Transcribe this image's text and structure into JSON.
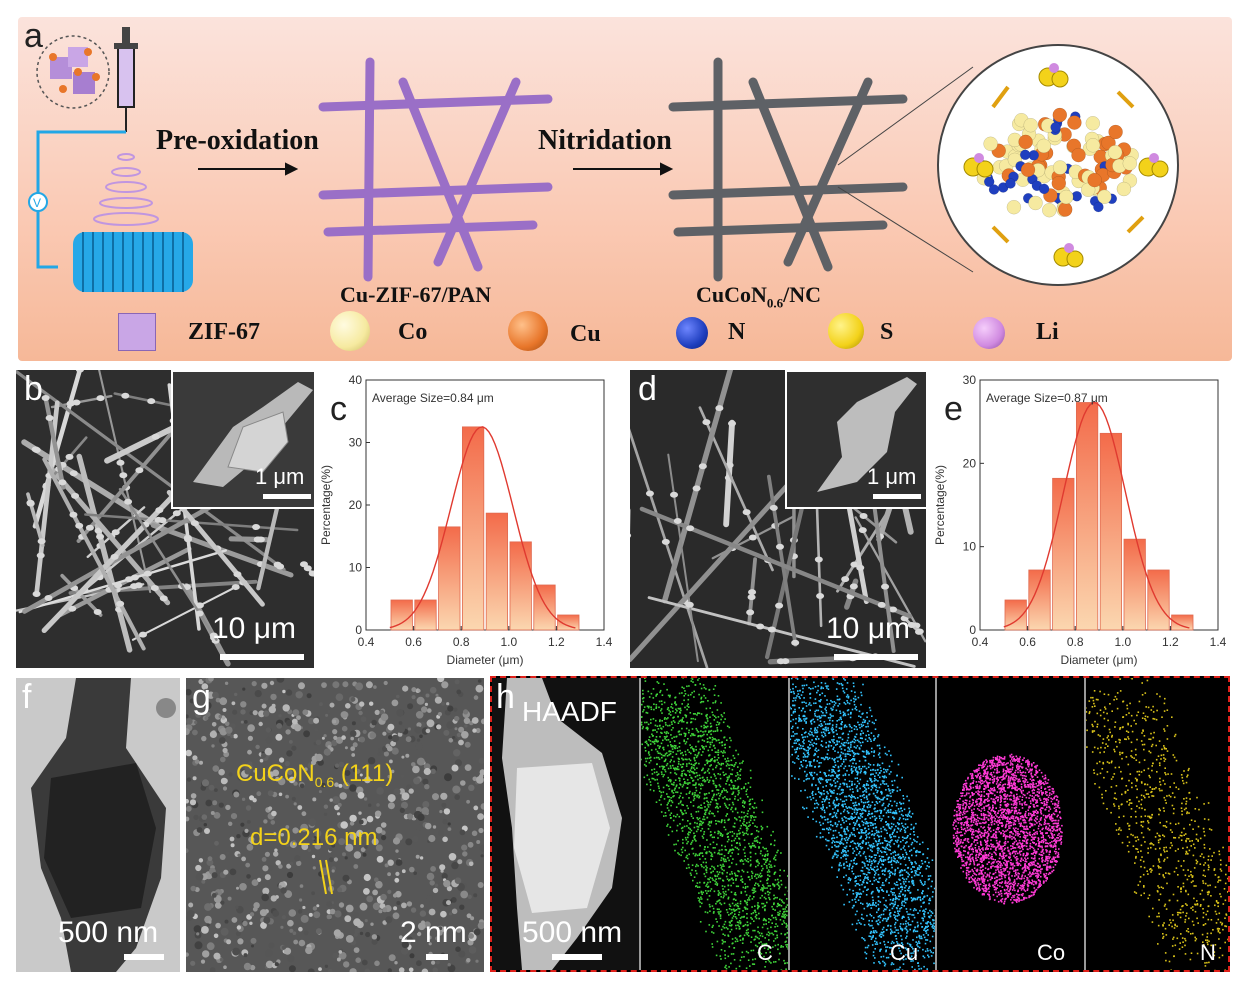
{
  "panel_a": {
    "letter": "a",
    "step1": "Pre-oxidation",
    "step2": "Nitridation",
    "product1": "Cu-ZIF-67/PAN",
    "product2_prefix": "CuCoN",
    "product2_sub": "0.6",
    "product2_suffix": "/NC",
    "legend": [
      {
        "label": "ZIF-67",
        "color": "#c9a6e6"
      },
      {
        "label": "Co",
        "color": "#f6eaa0"
      },
      {
        "label": "Cu",
        "color": "#e8762a"
      },
      {
        "label": "N",
        "color": "#1f3fbf"
      },
      {
        "label": "S",
        "color": "#f3d21a"
      },
      {
        "label": "Li",
        "color": "#d08ae0"
      }
    ]
  },
  "panel_b": {
    "letter": "b",
    "scale_main": "10 μm",
    "scale_inset": "1 μm"
  },
  "panel_d": {
    "letter": "d",
    "scale_main": "10 μm",
    "scale_inset": "1 μm"
  },
  "panel_f": {
    "letter": "f",
    "scale": "500 nm"
  },
  "panel_g": {
    "letter": "g",
    "label_prefix": "CuCoN",
    "label_sub": "0.6",
    "label_suffix": " (111)",
    "dspacing": "d=0.216 nm",
    "scale": "2 nm"
  },
  "panel_h": {
    "letter": "h",
    "haadf": "HAADF",
    "scale": "500 nm",
    "maps": [
      {
        "label": "C",
        "color": "#3fd43a"
      },
      {
        "label": "Cu",
        "color": "#33c4ff"
      },
      {
        "label": "Co",
        "color": "#ff3ad6"
      },
      {
        "label": "N",
        "color": "#d9c21a"
      }
    ]
  },
  "chart_data": [
    {
      "panel": "c",
      "type": "bar",
      "annotation": "Average Size=0.84 μm",
      "xlabel": "Diameter (μm)",
      "ylabel": "Percentage(%)",
      "xlim": [
        0.4,
        1.4
      ],
      "ylim": [
        0,
        40
      ],
      "xticks": [
        "0.4",
        "0.6",
        "0.8",
        "1.0",
        "1.2",
        "1.4"
      ],
      "yticks": [
        "0",
        "10",
        "20",
        "30",
        "40"
      ],
      "x": [
        0.55,
        0.65,
        0.75,
        0.85,
        0.95,
        1.05,
        1.15,
        1.25
      ],
      "values": [
        4.8,
        4.8,
        16.5,
        32.5,
        18.7,
        14.1,
        7.2,
        2.4
      ],
      "fit": "gaussian"
    },
    {
      "panel": "e",
      "type": "bar",
      "annotation": "Average Size=0.87 μm",
      "xlabel": "Diameter (μm)",
      "ylabel": "Percentage(%)",
      "xlim": [
        0.4,
        1.4
      ],
      "ylim": [
        0,
        30
      ],
      "xticks": [
        "0.4",
        "0.6",
        "0.8",
        "1.0",
        "1.2",
        "1.4"
      ],
      "yticks": [
        "0",
        "10",
        "20",
        "30"
      ],
      "x": [
        0.55,
        0.65,
        0.75,
        0.85,
        0.95,
        1.05,
        1.15,
        1.25
      ],
      "values": [
        3.6,
        7.2,
        18.2,
        27.3,
        23.6,
        10.9,
        7.2,
        1.8
      ],
      "fit": "gaussian"
    }
  ]
}
